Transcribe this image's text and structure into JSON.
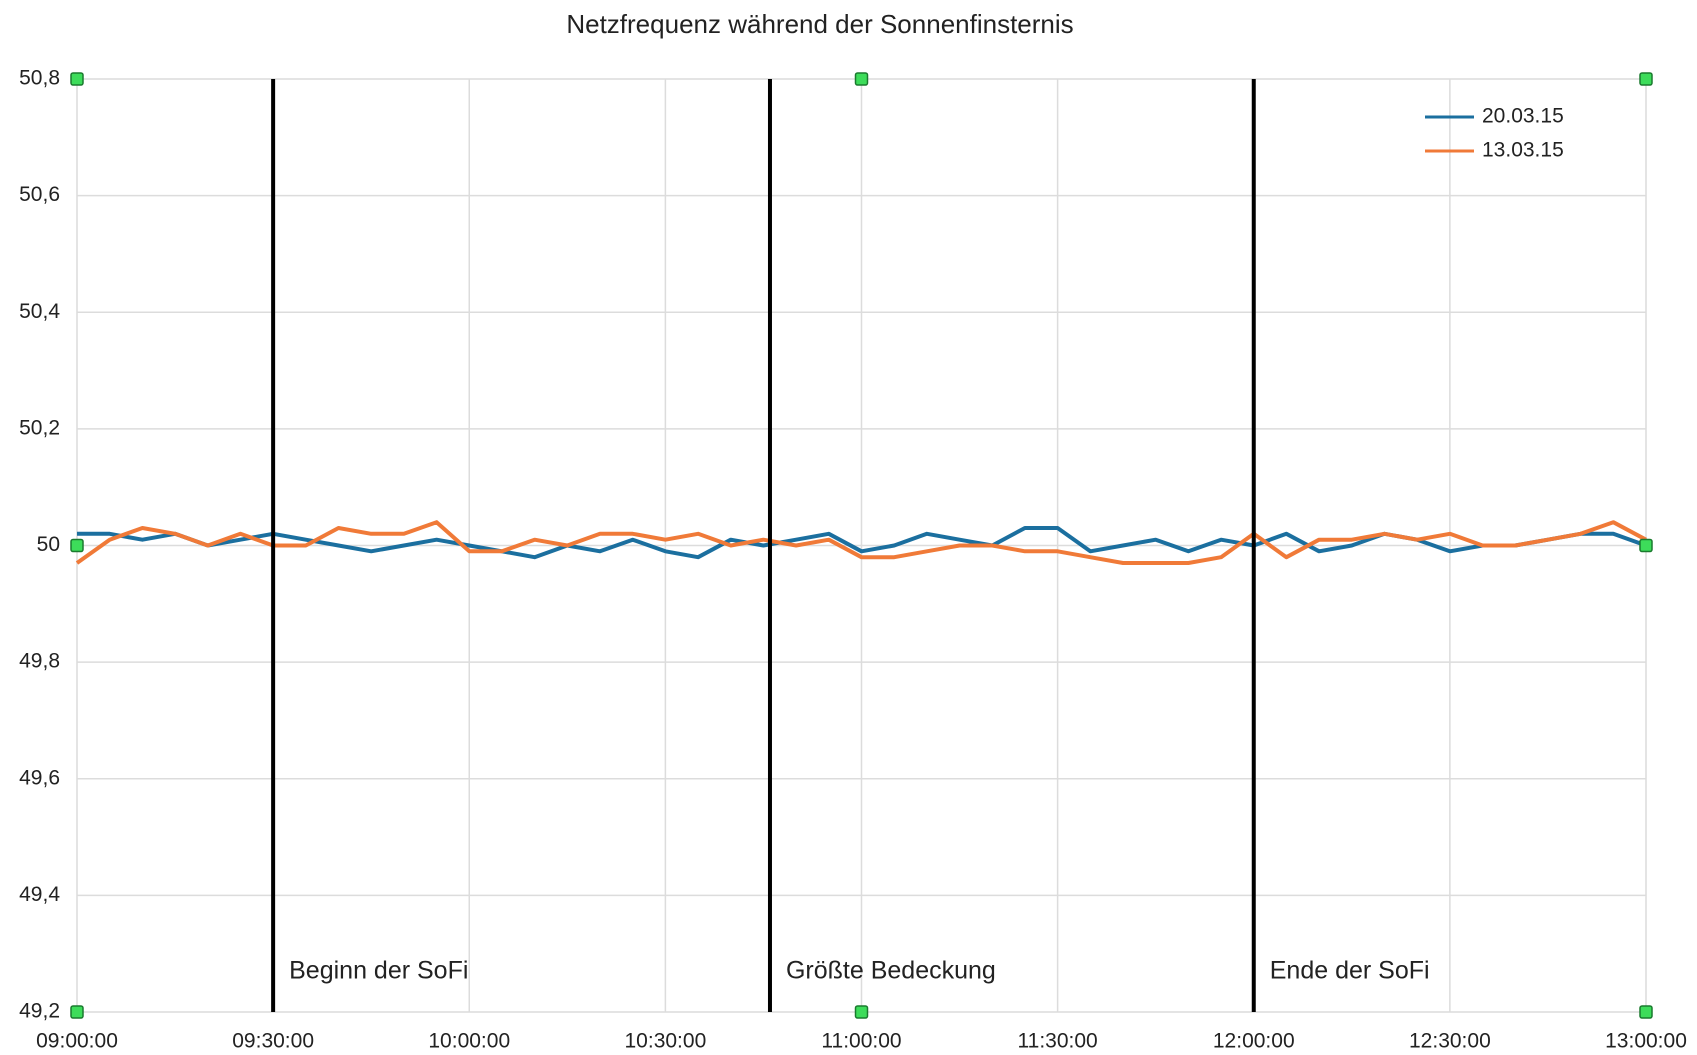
{
  "chart_data": {
    "type": "line",
    "title": "Netzfrequenz während der Sonnenfinsternis",
    "x": [
      "09:00:00",
      "09:05:00",
      "09:10:00",
      "09:15:00",
      "09:20:00",
      "09:25:00",
      "09:30:00",
      "09:35:00",
      "09:40:00",
      "09:45:00",
      "09:50:00",
      "09:55:00",
      "10:00:00",
      "10:05:00",
      "10:10:00",
      "10:15:00",
      "10:20:00",
      "10:25:00",
      "10:30:00",
      "10:35:00",
      "10:40:00",
      "10:45:00",
      "10:50:00",
      "10:55:00",
      "11:00:00",
      "11:05:00",
      "11:10:00",
      "11:15:00",
      "11:20:00",
      "11:25:00",
      "11:30:00",
      "11:35:00",
      "11:40:00",
      "11:45:00",
      "11:50:00",
      "11:55:00",
      "12:00:00",
      "12:05:00",
      "12:10:00",
      "12:15:00",
      "12:20:00",
      "12:25:00",
      "12:30:00",
      "12:35:00",
      "12:40:00",
      "12:45:00",
      "12:50:00",
      "12:55:00",
      "13:00:00"
    ],
    "series": [
      {
        "name": "20.03.15",
        "color": "#1b6f9f",
        "values": [
          50.02,
          50.02,
          50.01,
          50.02,
          50.0,
          50.01,
          50.02,
          50.01,
          50.0,
          49.99,
          50.0,
          50.01,
          50.0,
          49.99,
          49.98,
          50.0,
          49.99,
          50.01,
          49.99,
          49.98,
          50.01,
          50.0,
          50.01,
          50.02,
          49.99,
          50.0,
          50.02,
          50.01,
          50.0,
          50.03,
          50.03,
          49.99,
          50.0,
          50.01,
          49.99,
          50.01,
          50.0,
          50.02,
          49.99,
          50.0,
          50.02,
          50.01,
          49.99,
          50.0,
          50.0,
          50.01,
          50.02,
          50.02,
          50.0
        ]
      },
      {
        "name": "13.03.15",
        "color": "#f07a38",
        "values": [
          49.97,
          50.01,
          50.03,
          50.02,
          50.0,
          50.02,
          50.0,
          50.0,
          50.03,
          50.02,
          50.02,
          50.04,
          49.99,
          49.99,
          50.01,
          50.0,
          50.02,
          50.02,
          50.01,
          50.02,
          50.0,
          50.01,
          50.0,
          50.01,
          49.98,
          49.98,
          49.99,
          50.0,
          50.0,
          49.99,
          49.99,
          49.98,
          49.97,
          49.97,
          49.97,
          49.98,
          50.02,
          49.98,
          50.01,
          50.01,
          50.02,
          50.01,
          50.02,
          50.0,
          50.0,
          50.01,
          50.02,
          50.04,
          50.01
        ]
      }
    ],
    "xlim": [
      "09:00:00",
      "13:00:00"
    ],
    "xticks": [
      "09:00:00",
      "09:30:00",
      "10:00:00",
      "10:30:00",
      "11:00:00",
      "11:30:00",
      "12:00:00",
      "12:30:00",
      "13:00:00"
    ],
    "ylim": [
      49.2,
      50.8
    ],
    "yticks": [
      {
        "value": 49.2,
        "label": "49,2"
      },
      {
        "value": 49.4,
        "label": "49,4"
      },
      {
        "value": 49.6,
        "label": "49,6"
      },
      {
        "value": 49.8,
        "label": "49,8"
      },
      50,
      {
        "value": 50.2,
        "label": "50,2"
      },
      {
        "value": 50.4,
        "label": "50,4"
      },
      {
        "value": 50.6,
        "label": "50,6"
      },
      {
        "value": 50.8,
        "label": "50,8"
      }
    ],
    "grid": true,
    "legend": "upper right",
    "annotations": [
      {
        "x": "09:30:00",
        "text": "Beginn der SoFi"
      },
      {
        "x": "10:46:00",
        "text": "Größte Bedeckung"
      },
      {
        "x": "12:00:00",
        "text": "Ende der SoFi"
      }
    ]
  }
}
